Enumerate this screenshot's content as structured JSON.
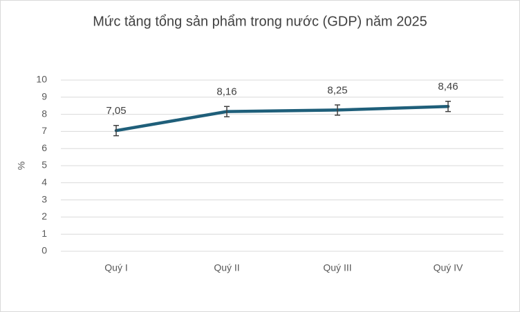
{
  "chart_data": {
    "type": "line",
    "title": "Mức tăng tổng sản phẩm trong nước (GDP) năm 2025",
    "ylabel": "%",
    "categories": [
      "Quý I",
      "Quý II",
      "Quý III",
      "Quý IV"
    ],
    "series": [
      {
        "name": "GDP",
        "color": "#1f5f7a",
        "values": [
          7.05,
          8.16,
          8.25,
          8.46
        ],
        "value_labels": [
          "7,05",
          "8,16",
          "8,25",
          "8,46"
        ],
        "errors": [
          0.3,
          0.3,
          0.3,
          0.3
        ]
      }
    ],
    "ylim": [
      0,
      10
    ],
    "yticks": [
      0,
      1,
      2,
      3,
      4,
      5,
      6,
      7,
      8,
      9,
      10
    ],
    "grid": true
  }
}
